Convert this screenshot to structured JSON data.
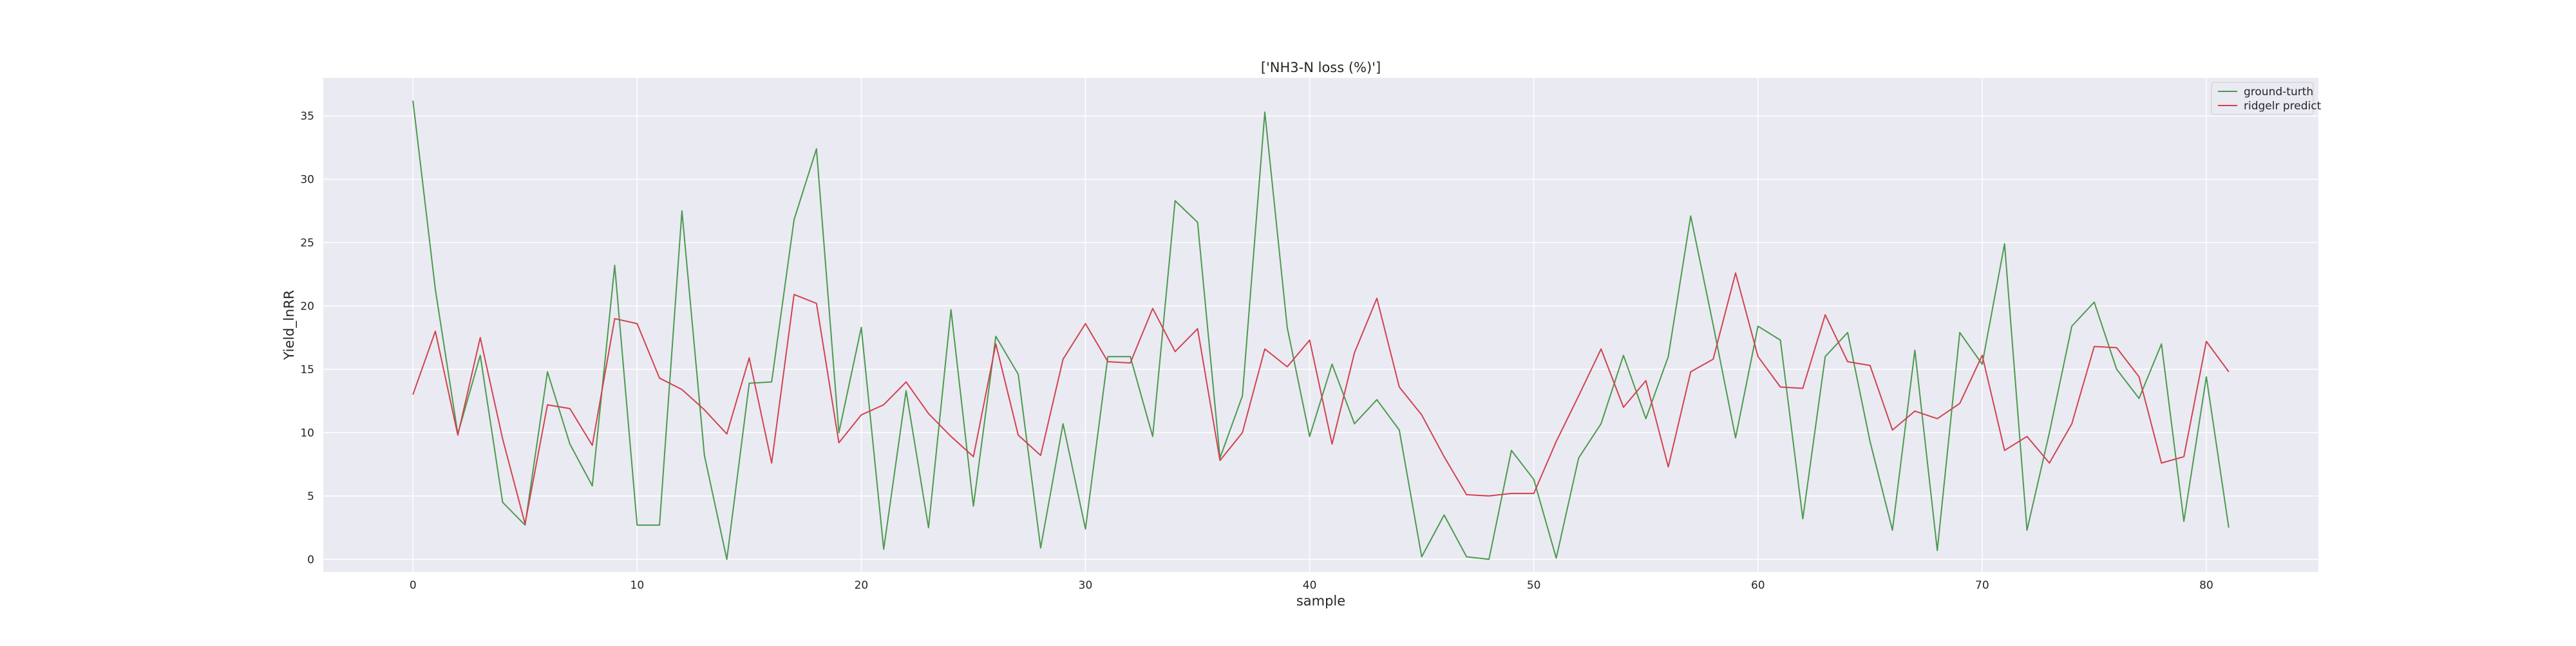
{
  "chart_data": {
    "type": "line",
    "title": "['NH3-N loss (%)']",
    "xlabel": "sample",
    "ylabel": "Yield_lnRR",
    "xlim": [
      -4,
      85
    ],
    "ylim": [
      -1,
      38
    ],
    "xticks": [
      0,
      10,
      20,
      30,
      40,
      50,
      60,
      70,
      80
    ],
    "yticks": [
      0,
      5,
      10,
      15,
      20,
      25,
      30,
      35
    ],
    "grid": true,
    "legend_position": "top-right",
    "series": [
      {
        "name": "ground-turth",
        "color": "#4c9a4f",
        "values": [
          36.2,
          21.3,
          9.9,
          16.1,
          4.5,
          2.7,
          14.8,
          9.1,
          5.8,
          23.2,
          2.7,
          2.7,
          27.5,
          8.2,
          0.0,
          13.9,
          14.0,
          26.8,
          32.4,
          10.0,
          18.3,
          0.8,
          13.3,
          2.5,
          19.7,
          4.2,
          17.6,
          14.6,
          0.9,
          10.7,
          2.4,
          16.0,
          16.0,
          9.7,
          28.3,
          26.6,
          8.0,
          12.9,
          35.3,
          18.3,
          9.7,
          15.4,
          10.7,
          12.6,
          10.2,
          0.2,
          3.5,
          0.2,
          0.0,
          8.6,
          6.3,
          0.1,
          8.0,
          10.7,
          16.1,
          11.1,
          16.0,
          27.1,
          18.5,
          9.6,
          18.4,
          17.3,
          3.2,
          16.0,
          17.9,
          9.3,
          2.3,
          16.5,
          0.7,
          17.9,
          15.4,
          24.9,
          2.3,
          10.0,
          18.4,
          20.3,
          15.0,
          12.7,
          17.0,
          3.0,
          14.4,
          2.5
        ]
      },
      {
        "name": "ridgelr predict",
        "color": "#d0434f",
        "values": [
          13.0,
          18.0,
          9.8,
          17.5,
          9.5,
          2.8,
          12.2,
          11.9,
          9.0,
          19.0,
          18.6,
          14.3,
          13.4,
          11.8,
          9.9,
          15.9,
          7.6,
          20.9,
          20.2,
          9.2,
          11.4,
          12.2,
          14.0,
          11.5,
          9.7,
          8.1,
          17.0,
          9.8,
          8.2,
          15.8,
          18.6,
          15.6,
          15.5,
          19.8,
          16.4,
          18.2,
          7.8,
          10.0,
          16.6,
          15.2,
          17.3,
          9.1,
          16.3,
          20.6,
          13.6,
          11.4,
          8.1,
          5.1,
          5.0,
          5.2,
          5.2,
          9.3,
          12.9,
          16.6,
          12.0,
          14.1,
          7.3,
          14.8,
          15.8,
          22.6,
          16.0,
          13.6,
          13.5,
          19.3,
          15.6,
          15.3,
          10.2,
          11.7,
          11.1,
          12.3,
          16.1,
          8.6,
          9.7,
          7.6,
          10.7,
          16.8,
          16.7,
          14.4,
          7.6,
          8.1,
          17.2,
          14.8
        ]
      }
    ]
  }
}
